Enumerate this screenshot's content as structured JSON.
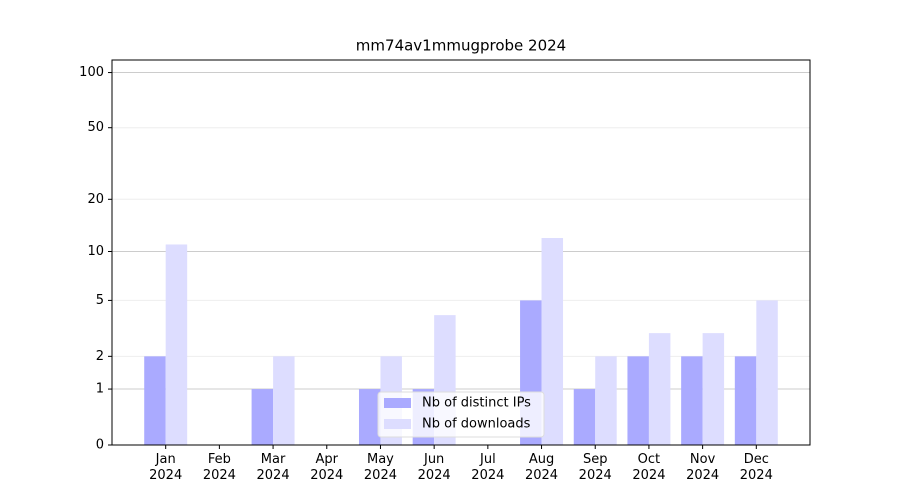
{
  "chart_data": {
    "type": "bar",
    "title": "mm74av1mmugprobe 2024",
    "categories": [
      "Jan\n2024",
      "Feb\n2024",
      "Mar\n2024",
      "Apr\n2024",
      "May\n2024",
      "Jun\n2024",
      "Jul\n2024",
      "Aug\n2024",
      "Sep\n2024",
      "Oct\n2024",
      "Nov\n2024",
      "Dec\n2024"
    ],
    "series": [
      {
        "name": "Nb of distinct IPs",
        "color": "#aaaaff",
        "values": [
          2,
          0,
          1,
          0,
          1,
          1,
          0,
          5,
          1,
          2,
          2,
          2
        ]
      },
      {
        "name": "Nb of downloads",
        "color": "#ddddff",
        "values": [
          11,
          0,
          2,
          0,
          2,
          4,
          0,
          12,
          2,
          3,
          3,
          5
        ]
      }
    ],
    "yscale": "log1p",
    "ylim": [
      0,
      117
    ],
    "yticks": [
      0,
      1,
      2,
      5,
      10,
      20,
      50,
      100
    ],
    "grid": true,
    "legend": "lower center"
  }
}
